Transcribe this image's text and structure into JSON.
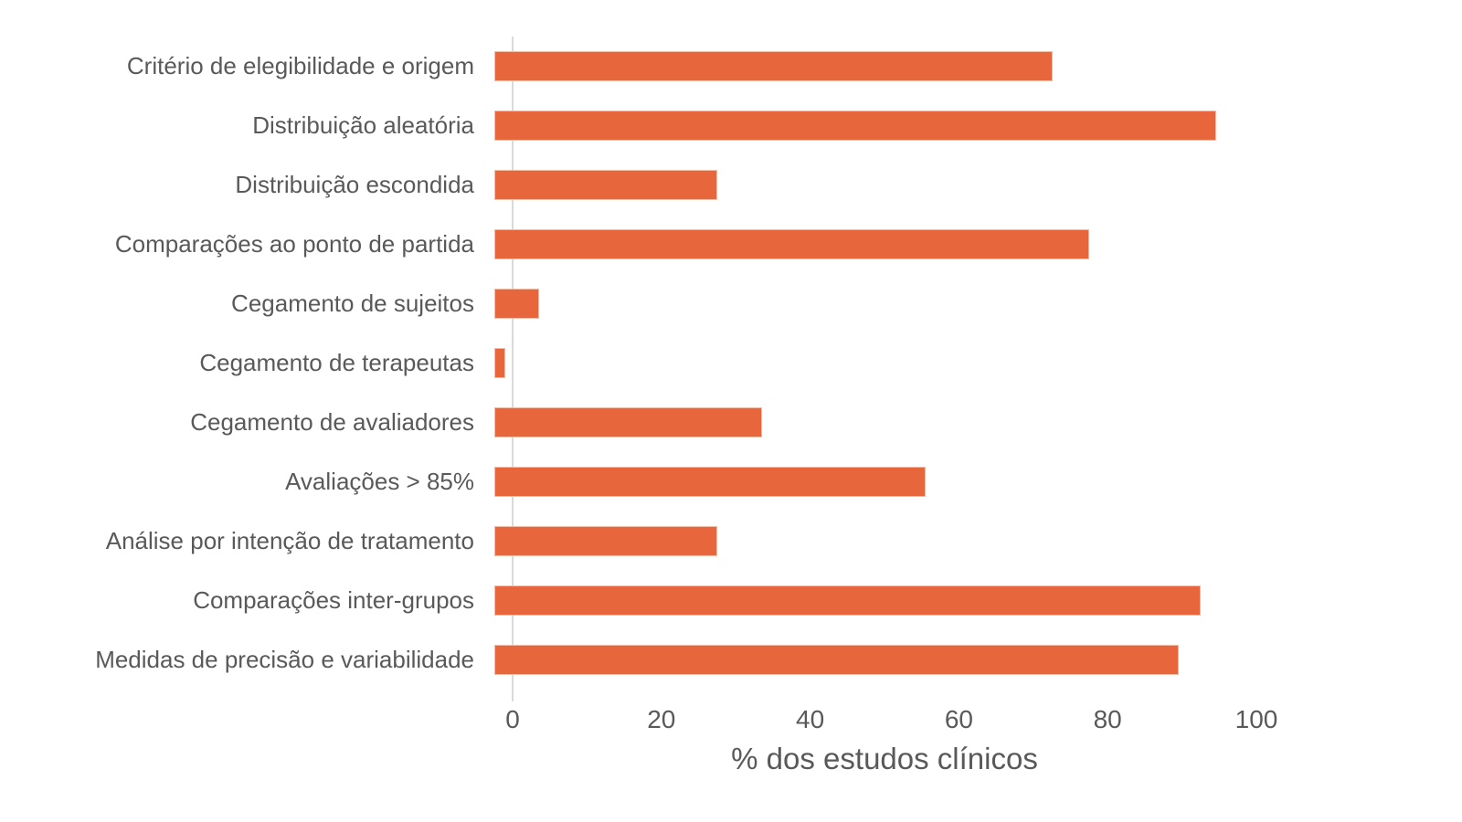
{
  "chart_data": {
    "type": "bar",
    "orientation": "horizontal",
    "title": "",
    "xlabel": "% dos estudos clínicos",
    "ylabel": "",
    "categories": [
      "Critério de elegibilidade e origem",
      "Distribuição aleatória",
      "Distribuição escondida",
      "Comparações ao ponto de partida",
      "Cegamento de sujeitos",
      "Cegamento de terapeutas",
      "Cegamento de avaliadores",
      "Avaliações > 85%",
      "Análise por intenção de tratamento",
      "Comparações inter-grupos",
      "Medidas de precisão e variabilidade"
    ],
    "values": [
      75,
      97,
      30,
      80,
      6,
      1.5,
      36,
      58,
      30,
      95,
      92
    ],
    "xlim": [
      0,
      100
    ],
    "xticks": [
      0,
      20,
      40,
      60,
      80,
      100
    ],
    "grid": false,
    "legend": null,
    "bar_color": "#E7663C",
    "text_color": "#595959",
    "axis_line_color": "#D9D9D9"
  }
}
